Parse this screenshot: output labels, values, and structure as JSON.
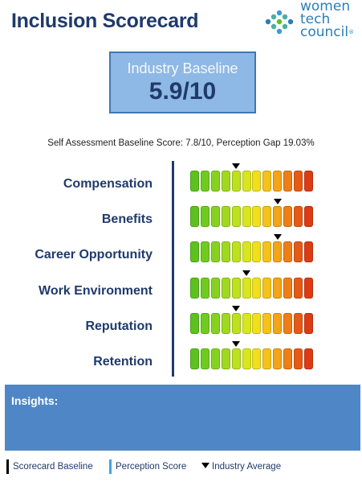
{
  "header": {
    "title": "Inclusion Scorecard"
  },
  "logo": {
    "line1": "women",
    "line2": "tech",
    "line3": "council",
    "mark": "®"
  },
  "baseline": {
    "label": "Industry Baseline",
    "value": "5.9/10"
  },
  "self_assessment": "Self Assessment Baseline Score: 7.8/10, Perception Gap 19.03%",
  "scale": {
    "segments": 12,
    "colors": [
      "#5cc21e",
      "#6fcc1f",
      "#86d31f",
      "#a0d81f",
      "#bde11e",
      "#d8e61e",
      "#f0e01c",
      "#f6c21a",
      "#f5a318",
      "#ef7e17",
      "#e65a16",
      "#dc3b14"
    ]
  },
  "categories": [
    {
      "label": "Compensation",
      "marker": 4
    },
    {
      "label": "Benefits",
      "marker": 8
    },
    {
      "label": "Career Opportunity",
      "marker": 8
    },
    {
      "label": "Work Environment",
      "marker": 5
    },
    {
      "label": "Reputation",
      "marker": 4
    },
    {
      "label": "Retention",
      "marker": 4
    }
  ],
  "insights": {
    "label": "Insights:"
  },
  "legend": {
    "baseline": "Scorecard Baseline",
    "perception": "Perception Score",
    "industry": "Industry Average",
    "baseline_color": "#000000",
    "perception_color": "#3fa6e0"
  }
}
